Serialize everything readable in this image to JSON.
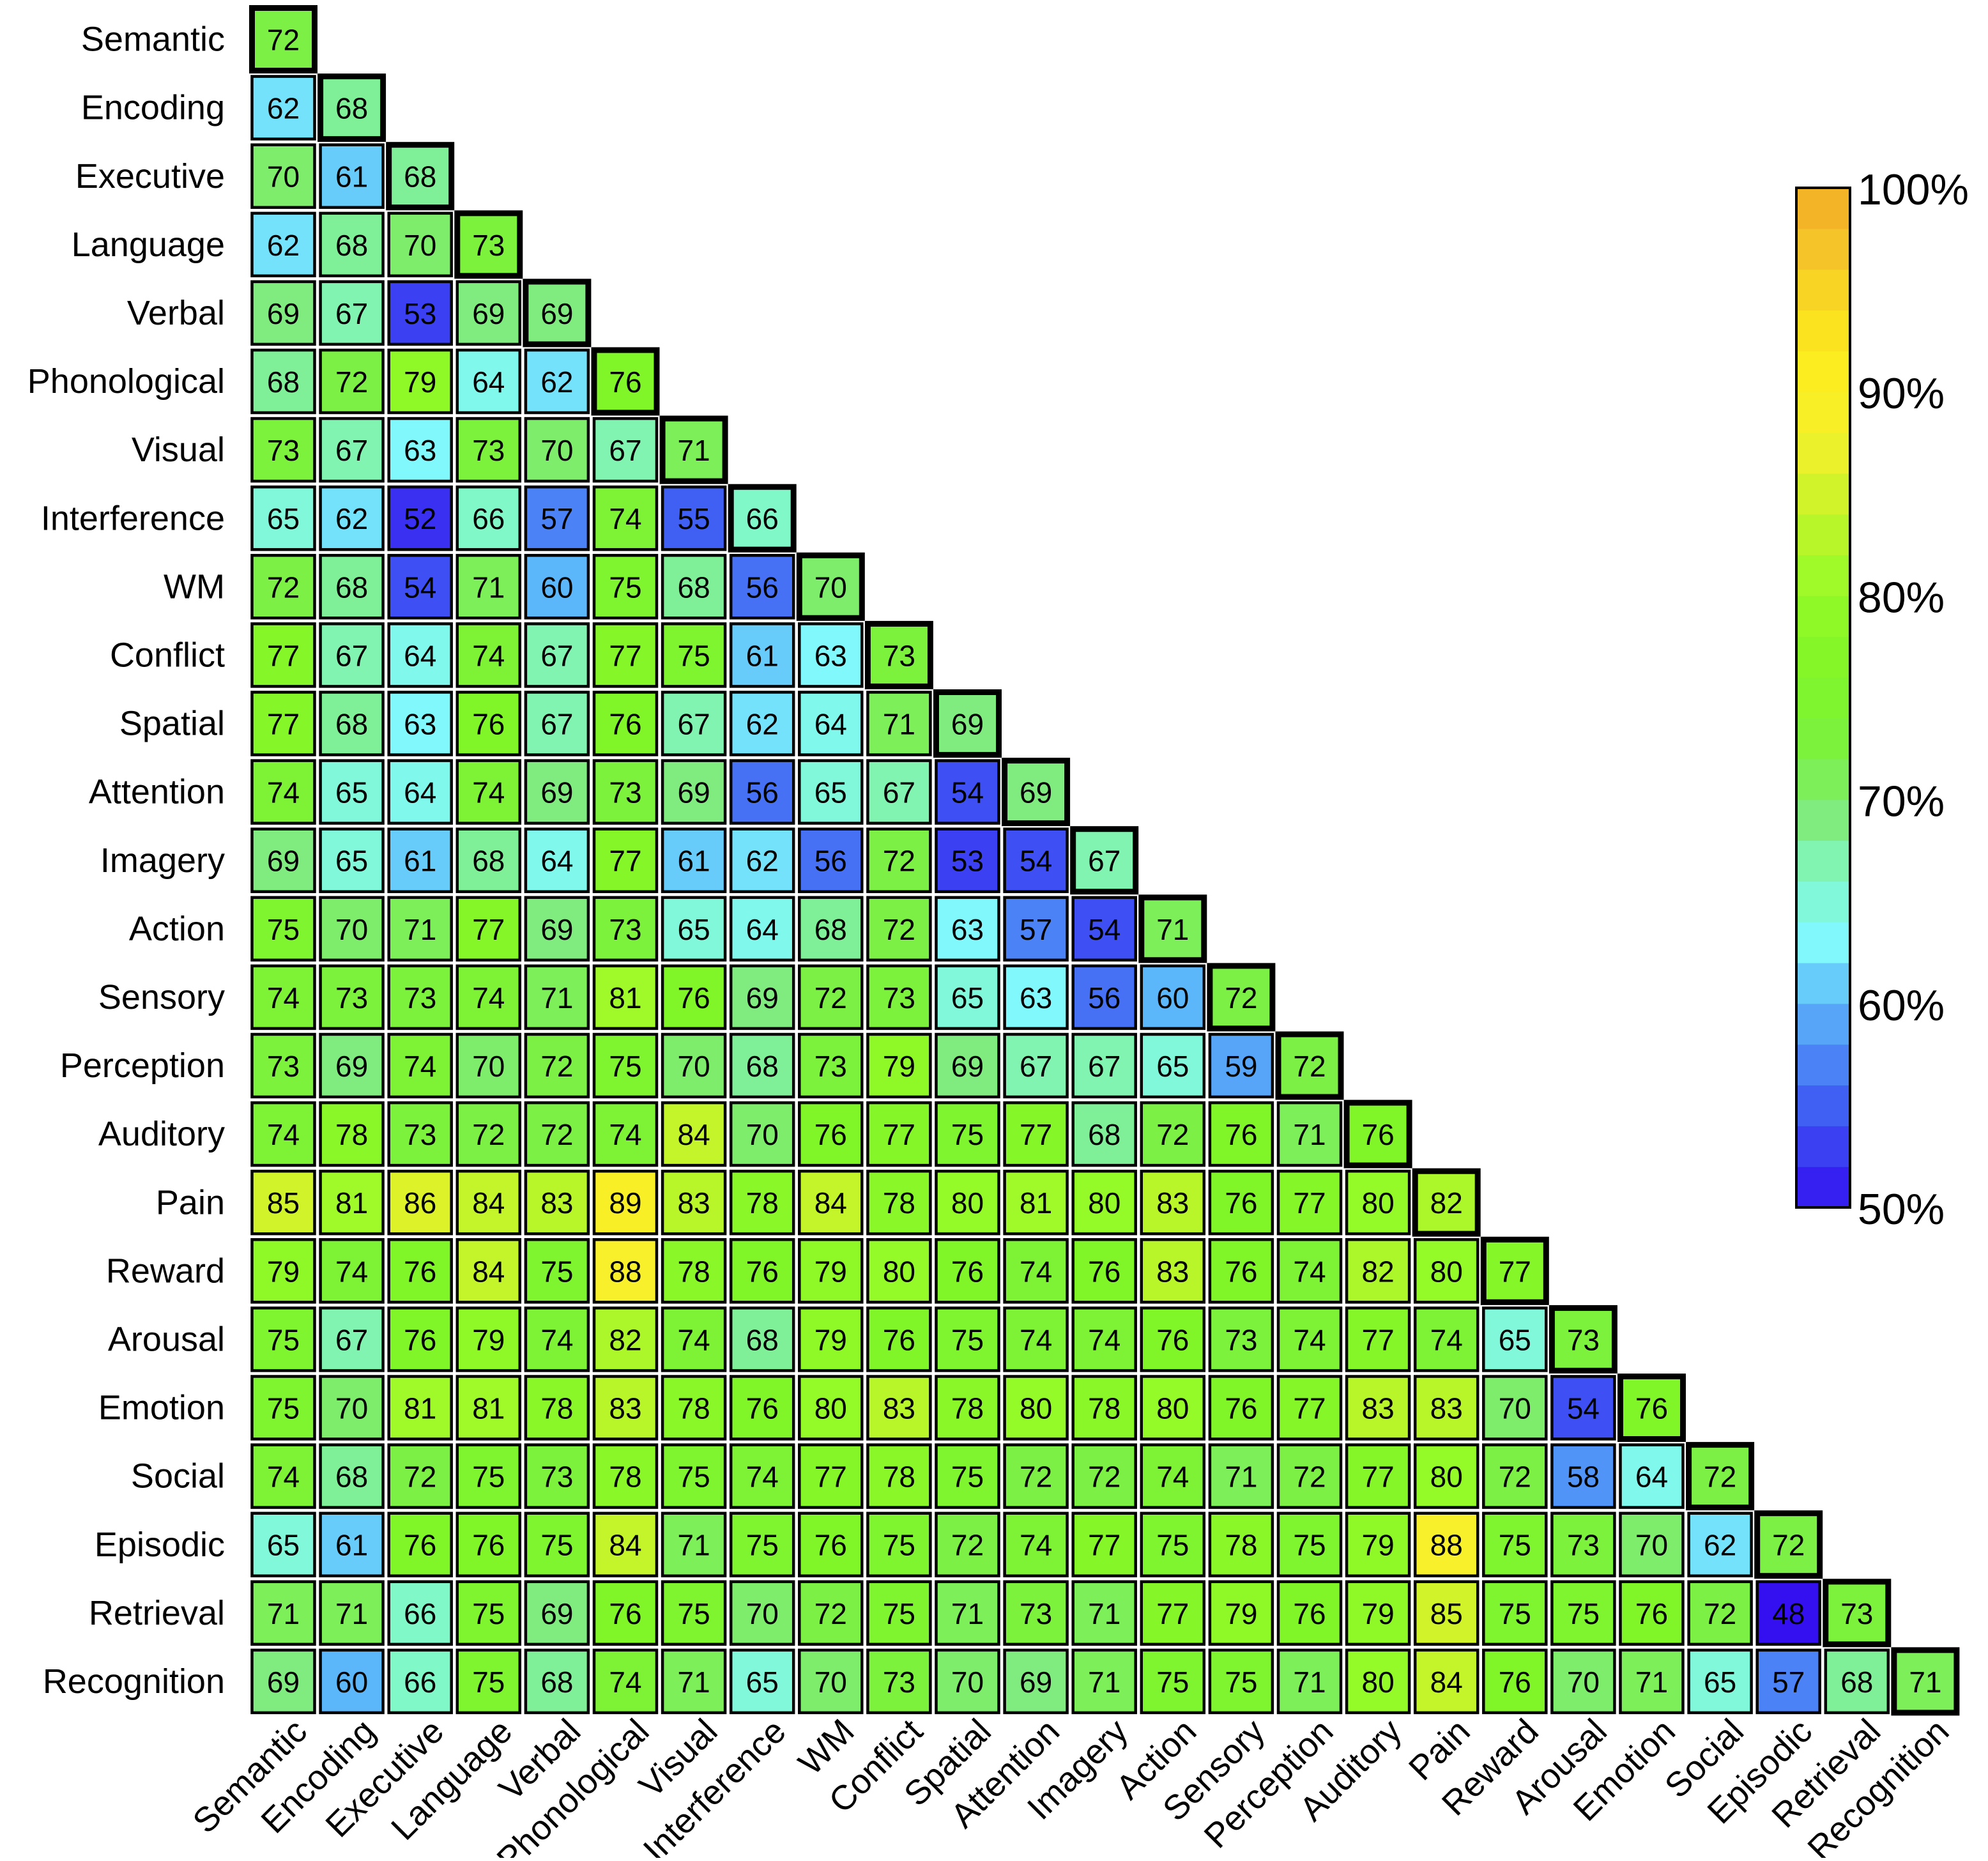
{
  "chart_data": {
    "type": "heatmap",
    "layout": "lower-triangle",
    "title": "",
    "xlabel": "",
    "ylabel": "",
    "labels": [
      "Semantic",
      "Encoding",
      "Executive",
      "Language",
      "Verbal",
      "Phonological",
      "Visual",
      "Interference",
      "WM",
      "Conflict",
      "Spatial",
      "Attention",
      "Imagery",
      "Action",
      "Sensory",
      "Perception",
      "Auditory",
      "Pain",
      "Reward",
      "Arousal",
      "Emotion",
      "Social",
      "Episodic",
      "Retrieval",
      "Recognition"
    ],
    "values": [
      [
        72
      ],
      [
        62,
        68
      ],
      [
        70,
        61,
        68
      ],
      [
        62,
        68,
        70,
        73
      ],
      [
        69,
        67,
        53,
        69,
        69
      ],
      [
        68,
        72,
        79,
        64,
        62,
        76
      ],
      [
        73,
        67,
        63,
        73,
        70,
        67,
        71
      ],
      [
        65,
        62,
        52,
        66,
        57,
        74,
        55,
        66
      ],
      [
        72,
        68,
        54,
        71,
        60,
        75,
        68,
        56,
        70
      ],
      [
        77,
        67,
        64,
        74,
        67,
        77,
        75,
        61,
        63,
        73
      ],
      [
        77,
        68,
        63,
        76,
        67,
        76,
        67,
        62,
        64,
        71,
        69
      ],
      [
        74,
        65,
        64,
        74,
        69,
        73,
        69,
        56,
        65,
        67,
        54,
        69
      ],
      [
        69,
        65,
        61,
        68,
        64,
        77,
        61,
        62,
        56,
        72,
        53,
        54,
        67
      ],
      [
        75,
        70,
        71,
        77,
        69,
        73,
        65,
        64,
        68,
        72,
        63,
        57,
        54,
        71
      ],
      [
        74,
        73,
        73,
        74,
        71,
        81,
        76,
        69,
        72,
        73,
        65,
        63,
        56,
        60,
        72
      ],
      [
        73,
        69,
        74,
        70,
        72,
        75,
        70,
        68,
        73,
        79,
        69,
        67,
        67,
        65,
        59,
        72
      ],
      [
        74,
        78,
        73,
        72,
        72,
        74,
        84,
        70,
        76,
        77,
        75,
        77,
        68,
        72,
        76,
        71,
        76
      ],
      [
        85,
        81,
        86,
        84,
        83,
        89,
        83,
        78,
        84,
        78,
        80,
        81,
        80,
        83,
        76,
        77,
        80,
        82
      ],
      [
        79,
        74,
        76,
        84,
        75,
        88,
        78,
        76,
        79,
        80,
        76,
        74,
        76,
        83,
        76,
        74,
        82,
        80,
        77
      ],
      [
        75,
        67,
        76,
        79,
        74,
        82,
        74,
        68,
        79,
        76,
        75,
        74,
        74,
        76,
        73,
        74,
        77,
        74,
        65,
        73
      ],
      [
        75,
        70,
        81,
        81,
        78,
        83,
        78,
        76,
        80,
        83,
        78,
        80,
        78,
        80,
        76,
        77,
        83,
        83,
        70,
        54,
        76
      ],
      [
        74,
        68,
        72,
        75,
        73,
        78,
        75,
        74,
        77,
        78,
        75,
        72,
        72,
        74,
        71,
        72,
        77,
        80,
        72,
        58,
        64,
        72
      ],
      [
        65,
        61,
        76,
        76,
        75,
        84,
        71,
        75,
        76,
        75,
        72,
        74,
        77,
        75,
        78,
        75,
        79,
        88,
        75,
        73,
        70,
        62,
        72
      ],
      [
        71,
        71,
        66,
        75,
        69,
        76,
        75,
        70,
        72,
        75,
        71,
        73,
        71,
        77,
        79,
        76,
        79,
        85,
        75,
        75,
        76,
        72,
        48,
        73
      ],
      [
        69,
        60,
        66,
        75,
        68,
        74,
        71,
        65,
        70,
        73,
        70,
        69,
        71,
        75,
        75,
        71,
        80,
        84,
        76,
        70,
        71,
        65,
        57,
        68,
        71
      ]
    ],
    "diagonal_highlighted": true,
    "colorbar": {
      "min": 50,
      "max": 100,
      "tick_values": [
        50,
        60,
        70,
        80,
        90,
        100
      ],
      "tick_labels": [
        "50%",
        "60%",
        "70%",
        "80%",
        "90%",
        "100%"
      ],
      "colormap": "jet-like (blue → cyan → green → yellow → orange)"
    }
  }
}
